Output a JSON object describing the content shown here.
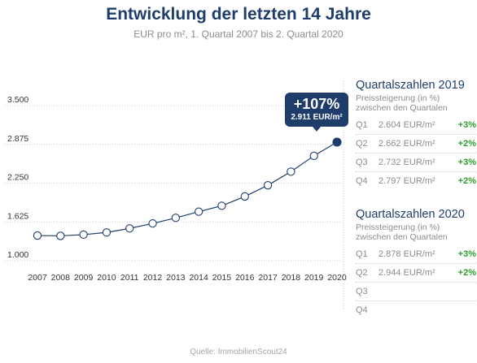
{
  "header": {
    "title": "Entwicklung der letzten 14 Jahre",
    "subtitle": "EUR pro m², 1. Quartal 2007 bis 2. Quartal 2020"
  },
  "callout": {
    "main": "+107%",
    "sub": "2.911 EUR/m²"
  },
  "colors": {
    "accent": "#1f3d6b",
    "positive": "#2ca02c",
    "grid": "#cccccc"
  },
  "chart_data": {
    "type": "line",
    "title": "Entwicklung der letzten 14 Jahre",
    "subtitle": "EUR pro m², 1. Quartal 2007 bis 2. Quartal 2020",
    "x": [
      "2007",
      "2008",
      "2009",
      "2010",
      "2011",
      "2012",
      "2013",
      "2014",
      "2015",
      "2016",
      "2017",
      "2018",
      "2019",
      "2020"
    ],
    "values": [
      1405,
      1400,
      1420,
      1455,
      1520,
      1600,
      1690,
      1790,
      1885,
      2035,
      2215,
      2435,
      2690,
      2911
    ],
    "y_ticks": [
      "1.000",
      "1.625",
      "2.250",
      "2.875",
      "3.500"
    ],
    "y_tick_values": [
      1000,
      1625,
      2250,
      2875,
      3500
    ],
    "ylim": [
      1000,
      3500
    ],
    "grid": "horizontal dotted",
    "highlight_last": true
  },
  "side_panels": [
    {
      "heading": "Quartalszahlen 2019",
      "sub_line1": "Preissteigerung (in %)",
      "sub_line2": "zwischen den Quartalen",
      "rows": [
        {
          "q": "Q1",
          "value": "2.604 EUR/m²",
          "change": "+3%"
        },
        {
          "q": "Q2",
          "value": "2.662 EUR/m²",
          "change": "+2%"
        },
        {
          "q": "Q3",
          "value": "2.732 EUR/m²",
          "change": "+3%"
        },
        {
          "q": "Q4",
          "value": "2.797 EUR/m²",
          "change": "+2%"
        }
      ]
    },
    {
      "heading": "Quartalszahlen 2020",
      "sub_line1": "Preissteigerung (in %)",
      "sub_line2": "zwischen den Quartalen",
      "rows": [
        {
          "q": "Q1",
          "value": "2.878 EUR/m²",
          "change": "+3%"
        },
        {
          "q": "Q2",
          "value": "2.944 EUR/m²",
          "change": "+2%"
        },
        {
          "q": "Q3",
          "value": "",
          "change": ""
        },
        {
          "q": "Q4",
          "value": "",
          "change": ""
        }
      ]
    }
  ],
  "source": "Quelle: ImmobilienScout24"
}
